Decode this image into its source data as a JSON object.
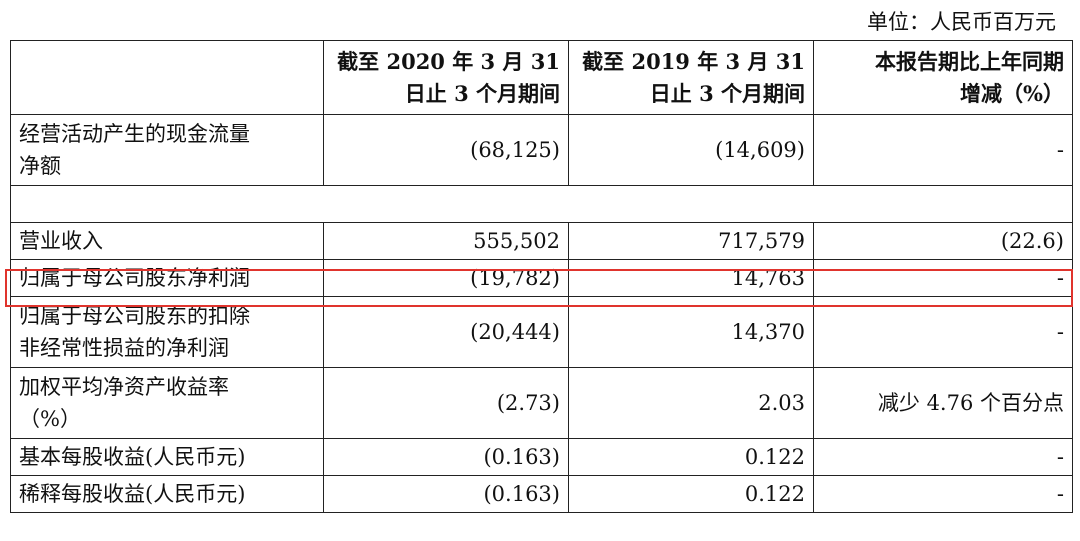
{
  "unit_label": "单位：人民币百万元",
  "headers": {
    "col1_line1": "截至 2020 年 3 月 31",
    "col1_line2": "日止 3 个月期间",
    "col2_line1": "截至 2019 年 3 月 31",
    "col2_line2": "日止 3 个月期间",
    "col3_line1": "本报告期比上年同期",
    "col3_line2": "增减（%）"
  },
  "rows": [
    {
      "label_line1": "经营活动产生的现金流量",
      "label_line2": "净额",
      "v2020": "(68,125)",
      "v2019": "(14,609)",
      "change": "-"
    },
    {
      "label": "营业收入",
      "v2020": "555,502",
      "v2019": "717,579",
      "change": "(22.6)"
    },
    {
      "label": "归属于母公司股东净利润",
      "v2020": "(19,782)",
      "v2019": "14,763",
      "change": "-"
    },
    {
      "label_line1": "归属于母公司股东的扣除",
      "label_line2": "非经常性损益的净利润",
      "v2020": "(20,444)",
      "v2019": "14,370",
      "change": "-"
    },
    {
      "label_line1": "加权平均净资产收益率",
      "label_line2": "（%）",
      "v2020": "(2.73)",
      "v2019": "2.03",
      "change": "减少 4.76 个百分点"
    },
    {
      "label": "基本每股收益(人民币元)",
      "v2020": "(0.163)",
      "v2019": "0.122",
      "change": "-"
    },
    {
      "label": "稀释每股收益(人民币元)",
      "v2020": "(0.163)",
      "v2019": "0.122",
      "change": "-"
    }
  ],
  "highlight_color": "#e0342d"
}
